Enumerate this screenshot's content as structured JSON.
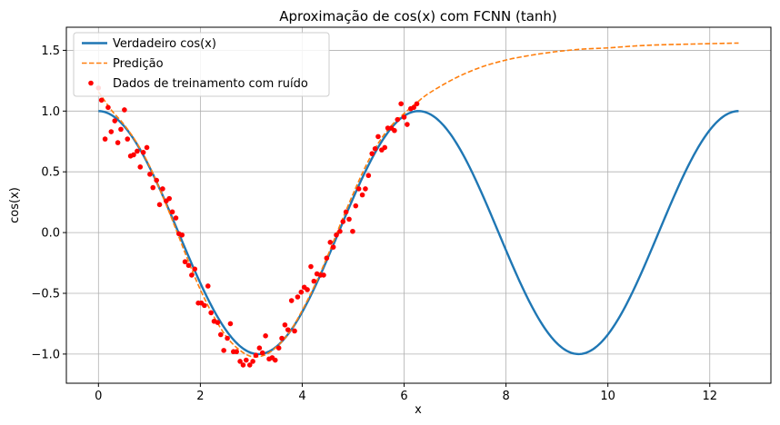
{
  "chart_data": {
    "type": "line",
    "title": "Aproximação de cos(x) com FCNN (tanh)",
    "xlabel": "x",
    "ylabel": "cos(x)",
    "xlim": [
      -0.63,
      13.2
    ],
    "ylim": [
      -1.24,
      1.69
    ],
    "x_ticks": [
      0,
      2,
      4,
      6,
      8,
      10,
      12
    ],
    "y_ticks": [
      -1.0,
      -0.5,
      0.0,
      0.5,
      1.0,
      1.5
    ],
    "x_tick_labels": [
      "0",
      "2",
      "4",
      "6",
      "8",
      "10",
      "12"
    ],
    "y_tick_labels": [
      "−1.0",
      "−0.5",
      "0.0",
      "0.5",
      "1.0",
      "1.5"
    ],
    "grid": true,
    "legend_position": "top-left",
    "series": [
      {
        "name": "Verdadeiro cos(x)",
        "kind": "line",
        "style": "solid",
        "color": "#1f77b4",
        "function": "cos",
        "x_range": [
          0,
          12.566
        ]
      },
      {
        "name": "Predição",
        "kind": "line",
        "style": "dashed",
        "color": "#ff7f0e",
        "x": [
          0,
          0.25,
          0.5,
          0.75,
          1.0,
          1.25,
          1.5,
          1.75,
          2.0,
          2.25,
          2.5,
          2.75,
          3.0,
          3.25,
          3.5,
          3.75,
          4.0,
          4.25,
          4.5,
          4.75,
          5.0,
          5.25,
          5.5,
          5.75,
          6.0,
          6.25,
          6.5,
          7.0,
          7.5,
          8.0,
          8.5,
          9.0,
          9.5,
          10.0,
          10.5,
          11.0,
          11.5,
          12.0,
          12.566
        ],
        "y": [
          1.16,
          1.01,
          0.89,
          0.74,
          0.55,
          0.31,
          0.05,
          -0.22,
          -0.47,
          -0.68,
          -0.85,
          -0.96,
          -1.02,
          -1.01,
          -0.94,
          -0.82,
          -0.64,
          -0.43,
          -0.19,
          0.07,
          0.32,
          0.55,
          0.74,
          0.88,
          0.98,
          1.07,
          1.15,
          1.27,
          1.36,
          1.42,
          1.46,
          1.49,
          1.51,
          1.52,
          1.535,
          1.545,
          1.55,
          1.555,
          1.56
        ]
      },
      {
        "name": "Dados de treinamento com ruído",
        "kind": "scatter",
        "color": "#ff0000",
        "x": [
          0.0,
          0.06,
          0.13,
          0.19,
          0.25,
          0.32,
          0.38,
          0.44,
          0.51,
          0.57,
          0.63,
          0.69,
          0.76,
          0.82,
          0.88,
          0.95,
          1.01,
          1.07,
          1.14,
          1.2,
          1.26,
          1.33,
          1.39,
          1.45,
          1.52,
          1.58,
          1.64,
          1.7,
          1.77,
          1.83,
          1.89,
          1.96,
          2.02,
          2.08,
          2.15,
          2.21,
          2.27,
          2.34,
          2.4,
          2.46,
          2.53,
          2.59,
          2.65,
          2.71,
          2.78,
          2.84,
          2.9,
          2.97,
          3.03,
          3.09,
          3.16,
          3.22,
          3.28,
          3.35,
          3.41,
          3.47,
          3.54,
          3.6,
          3.66,
          3.72,
          3.79,
          3.85,
          3.91,
          3.98,
          4.04,
          4.1,
          4.17,
          4.23,
          4.29,
          4.36,
          4.42,
          4.48,
          4.55,
          4.61,
          4.67,
          4.74,
          4.8,
          4.86,
          4.92,
          4.99,
          5.05,
          5.11,
          5.18,
          5.24,
          5.3,
          5.37,
          5.43,
          5.49,
          5.56,
          5.62,
          5.68,
          5.75,
          5.81,
          5.87,
          5.94,
          6.0,
          6.06,
          6.13,
          6.19,
          6.25
        ],
        "y": [
          1.19,
          1.09,
          0.77,
          1.03,
          0.83,
          0.92,
          0.74,
          0.85,
          1.01,
          0.77,
          0.63,
          0.64,
          0.67,
          0.54,
          0.66,
          0.7,
          0.48,
          0.37,
          0.43,
          0.23,
          0.36,
          0.26,
          0.28,
          0.17,
          0.12,
          -0.01,
          -0.02,
          -0.24,
          -0.27,
          -0.35,
          -0.3,
          -0.58,
          -0.58,
          -0.6,
          -0.44,
          -0.66,
          -0.73,
          -0.74,
          -0.84,
          -0.97,
          -0.87,
          -0.75,
          -0.98,
          -0.98,
          -1.06,
          -1.09,
          -1.05,
          -1.09,
          -1.06,
          -1.01,
          -0.95,
          -0.99,
          -0.85,
          -1.04,
          -1.03,
          -1.05,
          -0.95,
          -0.87,
          -0.76,
          -0.8,
          -0.56,
          -0.81,
          -0.53,
          -0.49,
          -0.45,
          -0.47,
          -0.28,
          -0.4,
          -0.34,
          -0.35,
          -0.35,
          -0.21,
          -0.08,
          -0.12,
          -0.02,
          0.01,
          0.09,
          0.17,
          0.11,
          0.01,
          0.22,
          0.36,
          0.31,
          0.36,
          0.47,
          0.65,
          0.69,
          0.79,
          0.68,
          0.7,
          0.86,
          0.86,
          0.84,
          0.93,
          1.06,
          0.95,
          0.89,
          1.02,
          1.03,
          1.06
        ]
      }
    ]
  }
}
